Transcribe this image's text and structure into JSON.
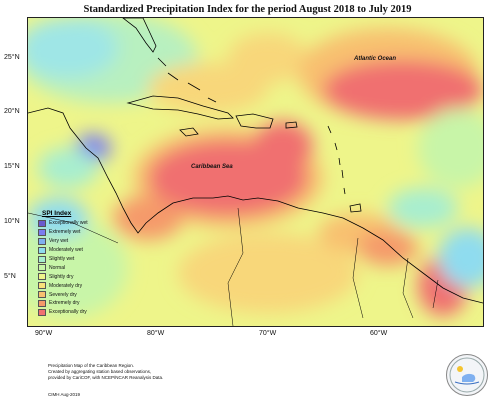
{
  "title": "Standardized Precipitation Index for the period August 2018 to July 2019",
  "map": {
    "labels": {
      "atlantic": "Atlantic Ocean",
      "caribbean": "Caribbean Sea"
    },
    "lat_ticks": [
      "25°N",
      "20°N",
      "15°N",
      "10°N",
      "5°N"
    ],
    "lon_ticks": [
      "90°W",
      "80°W",
      "70°W",
      "60°W"
    ]
  },
  "legend": {
    "title": "SPI Index",
    "items": [
      {
        "label": "Exceptionally wet",
        "color": "#6a5acd"
      },
      {
        "label": "Extremely wet",
        "color": "#7b7bf0"
      },
      {
        "label": "Very wet",
        "color": "#7fb0f0"
      },
      {
        "label": "Moderately wet",
        "color": "#8fdcef"
      },
      {
        "label": "Slightly wet",
        "color": "#a8eecf"
      },
      {
        "label": "Normal",
        "color": "#c8f5a8"
      },
      {
        "label": "Slightly dry",
        "color": "#eef58a"
      },
      {
        "label": "Moderately dry",
        "color": "#f8e07a"
      },
      {
        "label": "Severely dry",
        "color": "#f8c070"
      },
      {
        "label": "Extremely dry",
        "color": "#f59a6a"
      },
      {
        "label": "Exceptionally dry",
        "color": "#f07070"
      }
    ]
  },
  "credit": {
    "line1": "Precipitation Map of the Caribbean Region.",
    "line2": "Created by aggregating station based observations,",
    "line3": "provided by CariCOF, with NCEP/NCAR Reanalysis Data.",
    "line4": "CIMH Aug-2019"
  },
  "logo": {
    "text": "CIMH"
  }
}
